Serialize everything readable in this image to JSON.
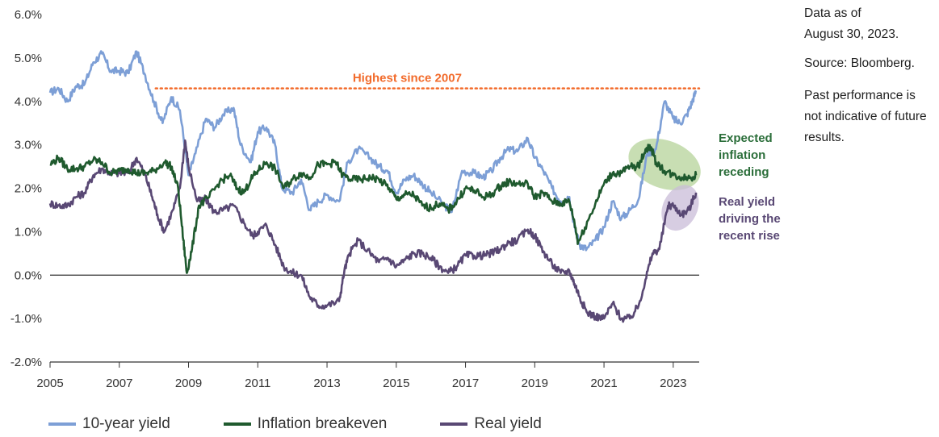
{
  "chart_data": {
    "type": "line",
    "xlabel": "",
    "ylabel": "",
    "xlim": [
      2005,
      2023.75
    ],
    "ylim": [
      -2.0,
      6.0
    ],
    "x_ticks": [
      "2005",
      "2007",
      "2009",
      "2011",
      "2013",
      "2015",
      "2017",
      "2019",
      "2021",
      "2023"
    ],
    "y_ticks": [
      "6.0%",
      "5.0%",
      "4.0%",
      "3.0%",
      "2.0%",
      "1.0%",
      "0.0%",
      "-1.0%",
      "-2.0%"
    ],
    "colors": {
      "ten_year": "#7d9fd6",
      "breakeven": "#1f5a2e",
      "real": "#594874",
      "highlight": "#f26b2b",
      "ellipse_green": "#b5d39a",
      "ellipse_purple": "#c9bcd8",
      "annotation_green": "#2b6e3a",
      "annotation_purple": "#594874"
    },
    "series": [
      {
        "name": "10-year yield",
        "key": "ten_year",
        "points": [
          [
            2005.0,
            4.2
          ],
          [
            2005.25,
            4.3
          ],
          [
            2005.5,
            4.0
          ],
          [
            2005.75,
            4.35
          ],
          [
            2006.0,
            4.4
          ],
          [
            2006.25,
            4.9
          ],
          [
            2006.5,
            5.1
          ],
          [
            2006.75,
            4.7
          ],
          [
            2007.0,
            4.7
          ],
          [
            2007.25,
            4.65
          ],
          [
            2007.5,
            5.15
          ],
          [
            2007.75,
            4.6
          ],
          [
            2008.0,
            4.0
          ],
          [
            2008.25,
            3.5
          ],
          [
            2008.5,
            4.1
          ],
          [
            2008.75,
            3.8
          ],
          [
            2009.0,
            2.3
          ],
          [
            2009.2,
            2.8
          ],
          [
            2009.5,
            3.6
          ],
          [
            2009.75,
            3.4
          ],
          [
            2010.0,
            3.7
          ],
          [
            2010.3,
            3.85
          ],
          [
            2010.5,
            3.0
          ],
          [
            2010.8,
            2.6
          ],
          [
            2011.0,
            3.3
          ],
          [
            2011.25,
            3.4
          ],
          [
            2011.5,
            3.0
          ],
          [
            2011.7,
            2.0
          ],
          [
            2012.0,
            1.9
          ],
          [
            2012.25,
            2.2
          ],
          [
            2012.5,
            1.5
          ],
          [
            2012.75,
            1.7
          ],
          [
            2013.0,
            1.85
          ],
          [
            2013.35,
            1.7
          ],
          [
            2013.6,
            2.6
          ],
          [
            2013.9,
            2.9
          ],
          [
            2014.25,
            2.7
          ],
          [
            2014.5,
            2.5
          ],
          [
            2014.75,
            2.4
          ],
          [
            2015.0,
            1.9
          ],
          [
            2015.25,
            2.2
          ],
          [
            2015.5,
            2.3
          ],
          [
            2015.75,
            2.1
          ],
          [
            2016.0,
            1.9
          ],
          [
            2016.4,
            1.6
          ],
          [
            2016.6,
            1.45
          ],
          [
            2016.9,
            2.4
          ],
          [
            2017.25,
            2.35
          ],
          [
            2017.5,
            2.25
          ],
          [
            2017.75,
            2.4
          ],
          [
            2018.0,
            2.7
          ],
          [
            2018.25,
            2.9
          ],
          [
            2018.5,
            2.85
          ],
          [
            2018.8,
            3.15
          ],
          [
            2019.0,
            2.7
          ],
          [
            2019.25,
            2.4
          ],
          [
            2019.5,
            2.0
          ],
          [
            2019.75,
            1.7
          ],
          [
            2020.0,
            1.8
          ],
          [
            2020.15,
            1.1
          ],
          [
            2020.3,
            0.7
          ],
          [
            2020.5,
            0.6
          ],
          [
            2020.75,
            0.8
          ],
          [
            2021.0,
            1.1
          ],
          [
            2021.25,
            1.7
          ],
          [
            2021.5,
            1.3
          ],
          [
            2021.75,
            1.5
          ],
          [
            2022.0,
            1.75
          ],
          [
            2022.25,
            2.8
          ],
          [
            2022.5,
            2.9
          ],
          [
            2022.75,
            4.0
          ],
          [
            2023.0,
            3.6
          ],
          [
            2023.2,
            3.5
          ],
          [
            2023.4,
            3.7
          ],
          [
            2023.55,
            4.0
          ],
          [
            2023.66,
            4.25
          ]
        ]
      },
      {
        "name": "Inflation breakeven",
        "key": "breakeven",
        "points": [
          [
            2005.0,
            2.55
          ],
          [
            2005.25,
            2.7
          ],
          [
            2005.5,
            2.45
          ],
          [
            2005.75,
            2.45
          ],
          [
            2006.0,
            2.5
          ],
          [
            2006.25,
            2.65
          ],
          [
            2006.5,
            2.6
          ],
          [
            2006.75,
            2.35
          ],
          [
            2007.0,
            2.4
          ],
          [
            2007.25,
            2.45
          ],
          [
            2007.5,
            2.35
          ],
          [
            2007.75,
            2.35
          ],
          [
            2008.0,
            2.4
          ],
          [
            2008.3,
            2.6
          ],
          [
            2008.5,
            2.5
          ],
          [
            2008.7,
            2.0
          ],
          [
            2008.85,
            0.8
          ],
          [
            2008.95,
            0.05
          ],
          [
            2009.1,
            0.6
          ],
          [
            2009.3,
            1.6
          ],
          [
            2009.6,
            1.8
          ],
          [
            2009.9,
            2.15
          ],
          [
            2010.2,
            2.3
          ],
          [
            2010.4,
            2.0
          ],
          [
            2010.6,
            1.9
          ],
          [
            2010.8,
            2.2
          ],
          [
            2011.0,
            2.4
          ],
          [
            2011.25,
            2.6
          ],
          [
            2011.5,
            2.45
          ],
          [
            2011.75,
            2.0
          ],
          [
            2012.0,
            2.2
          ],
          [
            2012.25,
            2.35
          ],
          [
            2012.5,
            2.25
          ],
          [
            2012.75,
            2.55
          ],
          [
            2013.0,
            2.55
          ],
          [
            2013.25,
            2.6
          ],
          [
            2013.45,
            2.3
          ],
          [
            2013.7,
            2.2
          ],
          [
            2014.0,
            2.2
          ],
          [
            2014.25,
            2.25
          ],
          [
            2014.5,
            2.2
          ],
          [
            2014.8,
            2.0
          ],
          [
            2015.0,
            1.75
          ],
          [
            2015.25,
            1.85
          ],
          [
            2015.5,
            1.85
          ],
          [
            2015.75,
            1.6
          ],
          [
            2016.0,
            1.55
          ],
          [
            2016.25,
            1.65
          ],
          [
            2016.5,
            1.5
          ],
          [
            2016.75,
            1.7
          ],
          [
            2017.0,
            2.0
          ],
          [
            2017.25,
            1.95
          ],
          [
            2017.5,
            1.8
          ],
          [
            2017.75,
            1.85
          ],
          [
            2018.0,
            2.05
          ],
          [
            2018.25,
            2.15
          ],
          [
            2018.5,
            2.1
          ],
          [
            2018.8,
            2.1
          ],
          [
            2019.0,
            1.8
          ],
          [
            2019.25,
            1.9
          ],
          [
            2019.5,
            1.7
          ],
          [
            2019.75,
            1.65
          ],
          [
            2020.0,
            1.7
          ],
          [
            2020.15,
            1.2
          ],
          [
            2020.25,
            0.75
          ],
          [
            2020.45,
            1.1
          ],
          [
            2020.75,
            1.65
          ],
          [
            2021.0,
            2.1
          ],
          [
            2021.25,
            2.35
          ],
          [
            2021.5,
            2.35
          ],
          [
            2021.75,
            2.5
          ],
          [
            2022.0,
            2.5
          ],
          [
            2022.2,
            2.9
          ],
          [
            2022.35,
            2.95
          ],
          [
            2022.5,
            2.6
          ],
          [
            2022.75,
            2.4
          ],
          [
            2023.0,
            2.3
          ],
          [
            2023.25,
            2.25
          ],
          [
            2023.5,
            2.25
          ],
          [
            2023.66,
            2.3
          ]
        ]
      },
      {
        "name": "Real yield",
        "key": "real",
        "points": [
          [
            2005.0,
            1.65
          ],
          [
            2005.25,
            1.6
          ],
          [
            2005.5,
            1.6
          ],
          [
            2005.75,
            1.8
          ],
          [
            2006.0,
            1.9
          ],
          [
            2006.25,
            2.3
          ],
          [
            2006.5,
            2.45
          ],
          [
            2006.75,
            2.35
          ],
          [
            2007.0,
            2.35
          ],
          [
            2007.25,
            2.35
          ],
          [
            2007.5,
            2.7
          ],
          [
            2007.75,
            2.3
          ],
          [
            2007.95,
            1.8
          ],
          [
            2008.1,
            1.4
          ],
          [
            2008.3,
            1.0
          ],
          [
            2008.55,
            1.5
          ],
          [
            2008.75,
            2.0
          ],
          [
            2008.9,
            3.1
          ],
          [
            2009.0,
            2.5
          ],
          [
            2009.25,
            1.7
          ],
          [
            2009.5,
            1.75
          ],
          [
            2009.75,
            1.45
          ],
          [
            2010.0,
            1.5
          ],
          [
            2010.3,
            1.6
          ],
          [
            2010.6,
            1.2
          ],
          [
            2010.85,
            0.9
          ],
          [
            2011.0,
            1.0
          ],
          [
            2011.25,
            1.15
          ],
          [
            2011.5,
            0.7
          ],
          [
            2011.75,
            0.2
          ],
          [
            2012.0,
            0.05
          ],
          [
            2012.25,
            0.0
          ],
          [
            2012.5,
            -0.5
          ],
          [
            2012.75,
            -0.7
          ],
          [
            2013.0,
            -0.7
          ],
          [
            2013.35,
            -0.6
          ],
          [
            2013.5,
            0.1
          ],
          [
            2013.65,
            0.5
          ],
          [
            2013.9,
            0.8
          ],
          [
            2014.25,
            0.5
          ],
          [
            2014.5,
            0.3
          ],
          [
            2014.75,
            0.4
          ],
          [
            2015.0,
            0.2
          ],
          [
            2015.25,
            0.35
          ],
          [
            2015.5,
            0.5
          ],
          [
            2015.75,
            0.5
          ],
          [
            2016.0,
            0.4
          ],
          [
            2016.25,
            0.2
          ],
          [
            2016.5,
            0.05
          ],
          [
            2016.75,
            0.2
          ],
          [
            2017.0,
            0.45
          ],
          [
            2017.25,
            0.45
          ],
          [
            2017.5,
            0.45
          ],
          [
            2017.75,
            0.5
          ],
          [
            2018.0,
            0.6
          ],
          [
            2018.25,
            0.75
          ],
          [
            2018.5,
            0.8
          ],
          [
            2018.8,
            1.05
          ],
          [
            2019.0,
            0.9
          ],
          [
            2019.25,
            0.55
          ],
          [
            2019.5,
            0.25
          ],
          [
            2019.75,
            0.05
          ],
          [
            2020.0,
            0.1
          ],
          [
            2020.15,
            -0.2
          ],
          [
            2020.3,
            -0.5
          ],
          [
            2020.5,
            -0.85
          ],
          [
            2020.75,
            -0.95
          ],
          [
            2021.0,
            -1.0
          ],
          [
            2021.25,
            -0.65
          ],
          [
            2021.5,
            -1.0
          ],
          [
            2021.75,
            -1.0
          ],
          [
            2022.0,
            -0.7
          ],
          [
            2022.2,
            -0.1
          ],
          [
            2022.4,
            0.5
          ],
          [
            2022.6,
            0.6
          ],
          [
            2022.85,
            1.6
          ],
          [
            2023.0,
            1.6
          ],
          [
            2023.25,
            1.4
          ],
          [
            2023.45,
            1.5
          ],
          [
            2023.66,
            1.9
          ]
        ]
      }
    ],
    "reference_line": {
      "value": 4.3,
      "x_start": 2008.05,
      "x_end": 2023.75
    },
    "annotations": {
      "highlight_label": "Highest since 2007",
      "green_label": [
        "Expected",
        "inflation",
        "receding"
      ],
      "purple_label": [
        "Real yield",
        "driving the",
        "recent rise"
      ]
    },
    "highlight_regions": [
      {
        "name": "breakeven-ellipse",
        "cx": 2022.75,
        "cy": 2.55,
        "rx": 1.08,
        "ry": 0.55,
        "rotate": 20
      },
      {
        "name": "real-yield-ellipse",
        "cx": 2023.2,
        "cy": 1.55,
        "rx": 0.5,
        "ry": 0.55,
        "rotate": 25
      }
    ]
  },
  "side_note": {
    "data_as_of": "Data as of",
    "date": "August 30, 2023.",
    "source": "Source: Bloomberg.",
    "disclaimer_line1": "Past performance is",
    "disclaimer_line2": "not indicative of future",
    "disclaimer_line3": "results."
  },
  "legend": [
    {
      "label": "10-year yield",
      "color": "#7d9fd6"
    },
    {
      "label": "Inflation breakeven",
      "color": "#1f5a2e"
    },
    {
      "label": "Real yield",
      "color": "#594874"
    }
  ]
}
